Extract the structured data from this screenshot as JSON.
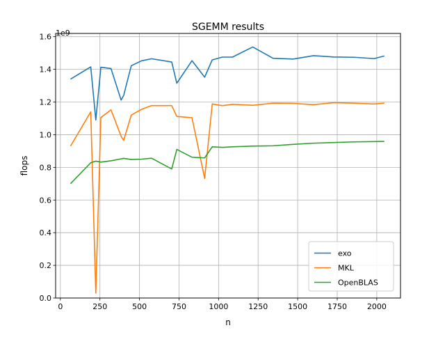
{
  "chart_data": {
    "type": "line",
    "title": "SGEMM results",
    "xlabel": "n",
    "ylabel": "flops",
    "y_offset_label": "1e9",
    "xlim": [
      -30,
      2150
    ],
    "ylim": [
      0.0,
      1.62
    ],
    "x_ticks": [
      0,
      250,
      500,
      750,
      1000,
      1250,
      1500,
      1750,
      2000
    ],
    "y_ticks": [
      0.0,
      0.2,
      0.4,
      0.6,
      0.8,
      1.0,
      1.2,
      1.4,
      1.6
    ],
    "y_tick_labels": [
      "0.0",
      "0.2",
      "0.4",
      "0.6",
      "0.8",
      "1.0",
      "1.2",
      "1.4",
      "1.6"
    ],
    "grid": true,
    "legend_position": "lower-right",
    "series": [
      {
        "name": "exo",
        "color": "#1f77b4",
        "x": [
          64,
          192,
          224,
          256,
          320,
          384,
          400,
          448,
          512,
          576,
          704,
          736,
          832,
          912,
          960,
          1024,
          1088,
          1216,
          1344,
          1472,
          1600,
          1728,
          1856,
          1984,
          2048
        ],
        "y": [
          1.34,
          1.415,
          1.09,
          1.413,
          1.405,
          1.212,
          1.24,
          1.422,
          1.452,
          1.465,
          1.445,
          1.315,
          1.453,
          1.352,
          1.458,
          1.475,
          1.475,
          1.537,
          1.468,
          1.463,
          1.484,
          1.476,
          1.474,
          1.466,
          1.482
        ]
      },
      {
        "name": "MKL",
        "color": "#ff7f0e",
        "x": [
          64,
          192,
          224,
          256,
          320,
          384,
          400,
          448,
          512,
          576,
          704,
          736,
          832,
          912,
          960,
          1024,
          1088,
          1216,
          1344,
          1472,
          1600,
          1728,
          1856,
          1984,
          2048
        ],
        "y": [
          0.93,
          1.14,
          0.03,
          1.105,
          1.152,
          0.99,
          0.965,
          1.12,
          1.155,
          1.178,
          1.178,
          1.112,
          1.104,
          0.732,
          1.188,
          1.178,
          1.186,
          1.18,
          1.193,
          1.192,
          1.184,
          1.196,
          1.193,
          1.188,
          1.193
        ]
      },
      {
        "name": "OpenBLAS",
        "color": "#2ca02c",
        "x": [
          64,
          192,
          224,
          256,
          320,
          384,
          400,
          448,
          512,
          576,
          704,
          736,
          832,
          912,
          960,
          1024,
          1088,
          1216,
          1344,
          1472,
          1600,
          1728,
          1856,
          1984,
          2048
        ],
        "y": [
          0.7,
          0.828,
          0.838,
          0.832,
          0.84,
          0.852,
          0.855,
          0.848,
          0.85,
          0.856,
          0.79,
          0.91,
          0.862,
          0.858,
          0.926,
          0.922,
          0.926,
          0.93,
          0.932,
          0.941,
          0.948,
          0.952,
          0.956,
          0.958,
          0.959
        ]
      }
    ]
  }
}
